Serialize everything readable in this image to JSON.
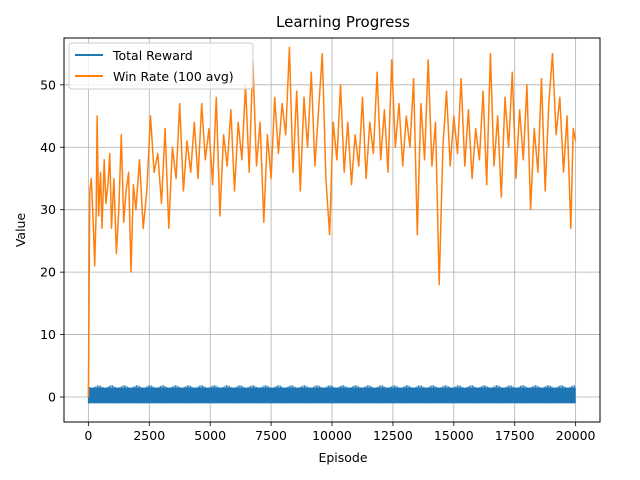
{
  "chart_data": {
    "type": "line",
    "title": "Learning Progress",
    "xlabel": "Episode",
    "ylabel": "Value",
    "xlim": [
      -1000,
      21000
    ],
    "ylim": [
      -4,
      57.5
    ],
    "x_ticks": [
      0,
      2500,
      5000,
      7500,
      10000,
      12500,
      15000,
      17500,
      20000
    ],
    "x_tick_labels": [
      "0",
      "2500",
      "5000",
      "7500",
      "10000",
      "12500",
      "15000",
      "17500",
      "20000"
    ],
    "y_ticks": [
      0,
      10,
      20,
      30,
      40,
      50
    ],
    "y_tick_labels": [
      "0",
      "10",
      "20",
      "30",
      "40",
      "50"
    ],
    "grid": true,
    "legend_position": "top-left",
    "series": [
      {
        "name": "Total Reward",
        "color": "#1f77b4",
        "x_range": [
          0,
          20000
        ],
        "band": [
          -1,
          1.5
        ],
        "note_values": "per-episode reward oscillating between about -1 and 1.5"
      },
      {
        "name": "Win Rate (100 avg)",
        "color": "#ff7f0e",
        "points": [
          [
            0,
            0
          ],
          [
            20,
            12
          ],
          [
            60,
            33
          ],
          [
            120,
            35
          ],
          [
            200,
            28
          ],
          [
            260,
            21
          ],
          [
            320,
            30
          ],
          [
            360,
            45
          ],
          [
            420,
            29
          ],
          [
            500,
            36
          ],
          [
            560,
            27
          ],
          [
            650,
            38
          ],
          [
            720,
            31
          ],
          [
            800,
            34
          ],
          [
            880,
            39
          ],
          [
            950,
            27
          ],
          [
            1050,
            35
          ],
          [
            1150,
            23
          ],
          [
            1250,
            30
          ],
          [
            1350,
            42
          ],
          [
            1450,
            28
          ],
          [
            1550,
            33
          ],
          [
            1650,
            36
          ],
          [
            1750,
            20
          ],
          [
            1850,
            34
          ],
          [
            1950,
            30
          ],
          [
            2100,
            38
          ],
          [
            2250,
            27
          ],
          [
            2400,
            33
          ],
          [
            2550,
            45
          ],
          [
            2700,
            36
          ],
          [
            2850,
            39
          ],
          [
            3000,
            31
          ],
          [
            3150,
            43
          ],
          [
            3300,
            27
          ],
          [
            3450,
            40
          ],
          [
            3600,
            35
          ],
          [
            3750,
            47
          ],
          [
            3900,
            33
          ],
          [
            4050,
            41
          ],
          [
            4200,
            36
          ],
          [
            4350,
            44
          ],
          [
            4500,
            35
          ],
          [
            4650,
            47
          ],
          [
            4800,
            38
          ],
          [
            4950,
            43
          ],
          [
            5100,
            34
          ],
          [
            5250,
            48
          ],
          [
            5400,
            29
          ],
          [
            5550,
            42
          ],
          [
            5700,
            37
          ],
          [
            5850,
            46
          ],
          [
            6000,
            33
          ],
          [
            6150,
            44
          ],
          [
            6300,
            38
          ],
          [
            6450,
            50
          ],
          [
            6600,
            36
          ],
          [
            6750,
            54
          ],
          [
            6900,
            37
          ],
          [
            7050,
            44
          ],
          [
            7200,
            28
          ],
          [
            7350,
            42
          ],
          [
            7500,
            35
          ],
          [
            7650,
            48
          ],
          [
            7800,
            39
          ],
          [
            7950,
            47
          ],
          [
            8100,
            42
          ],
          [
            8250,
            56
          ],
          [
            8400,
            36
          ],
          [
            8550,
            49
          ],
          [
            8700,
            33
          ],
          [
            8850,
            48
          ],
          [
            9000,
            40
          ],
          [
            9150,
            52
          ],
          [
            9300,
            37
          ],
          [
            9450,
            46
          ],
          [
            9600,
            55
          ],
          [
            9750,
            35
          ],
          [
            9900,
            26
          ],
          [
            10050,
            44
          ],
          [
            10200,
            38
          ],
          [
            10350,
            50
          ],
          [
            10500,
            36
          ],
          [
            10650,
            44
          ],
          [
            10800,
            34
          ],
          [
            10950,
            42
          ],
          [
            11100,
            37
          ],
          [
            11250,
            48
          ],
          [
            11400,
            35
          ],
          [
            11550,
            44
          ],
          [
            11700,
            39
          ],
          [
            11850,
            52
          ],
          [
            12000,
            38
          ],
          [
            12150,
            46
          ],
          [
            12300,
            36
          ],
          [
            12450,
            54
          ],
          [
            12600,
            40
          ],
          [
            12750,
            47
          ],
          [
            12900,
            37
          ],
          [
            13050,
            45
          ],
          [
            13200,
            40
          ],
          [
            13350,
            51
          ],
          [
            13500,
            26
          ],
          [
            13650,
            47
          ],
          [
            13800,
            38
          ],
          [
            13950,
            54
          ],
          [
            14100,
            37
          ],
          [
            14250,
            44
          ],
          [
            14400,
            18
          ],
          [
            14550,
            40
          ],
          [
            14700,
            49
          ],
          [
            14850,
            37
          ],
          [
            15000,
            45
          ],
          [
            15150,
            39
          ],
          [
            15300,
            51
          ],
          [
            15450,
            37
          ],
          [
            15600,
            46
          ],
          [
            15750,
            35
          ],
          [
            15900,
            43
          ],
          [
            16050,
            38
          ],
          [
            16200,
            49
          ],
          [
            16350,
            34
          ],
          [
            16500,
            55
          ],
          [
            16650,
            37
          ],
          [
            16800,
            45
          ],
          [
            16950,
            32
          ],
          [
            17100,
            48
          ],
          [
            17250,
            40
          ],
          [
            17400,
            52
          ],
          [
            17550,
            35
          ],
          [
            17700,
            46
          ],
          [
            17850,
            38
          ],
          [
            18000,
            50
          ],
          [
            18150,
            30
          ],
          [
            18300,
            43
          ],
          [
            18450,
            36
          ],
          [
            18600,
            51
          ],
          [
            18750,
            33
          ],
          [
            18900,
            47
          ],
          [
            19050,
            55
          ],
          [
            19200,
            42
          ],
          [
            19350,
            48
          ],
          [
            19500,
            36
          ],
          [
            19650,
            45
          ],
          [
            19800,
            27
          ],
          [
            19900,
            43
          ],
          [
            20000,
            41
          ]
        ]
      }
    ]
  }
}
